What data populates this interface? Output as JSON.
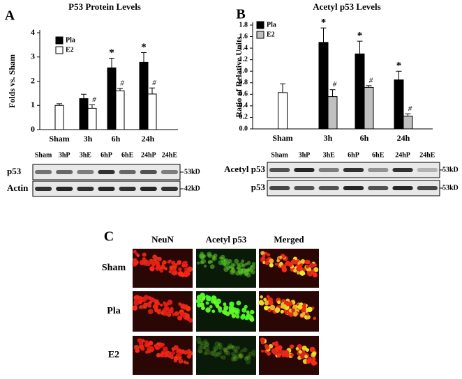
{
  "chart_data": [
    {
      "type": "bar",
      "panel": "A",
      "title": "P53 Protein Levels",
      "y_label": "Folds vs. Sham",
      "ylim": [
        0,
        4
      ],
      "yticks": [
        0,
        1,
        2,
        3,
        4
      ],
      "sham": {
        "label": "Sham",
        "value": 1,
        "error": 0.07,
        "color": "#ffffff"
      },
      "categories": [
        "3h",
        "6h",
        "24h"
      ],
      "series": [
        {
          "name": "Pla",
          "color": "#000000",
          "values": [
            1.28,
            2.55,
            2.78
          ],
          "errors": [
            0.18,
            0.4,
            0.4
          ],
          "marks": [
            null,
            "*",
            "*"
          ]
        },
        {
          "name": "E2",
          "color": "#ffffff",
          "values": [
            0.88,
            1.6,
            1.47
          ],
          "errors": [
            0.14,
            0.1,
            0.25
          ],
          "marks": [
            "#",
            "#",
            "#"
          ]
        }
      ]
    },
    {
      "type": "bar",
      "panel": "B",
      "title": "Acetyl p53 Levels",
      "y_label": "Ratio of Relative Units",
      "ylim": [
        0,
        1.8
      ],
      "yticks": [
        {
          "value": 0,
          "label": "0.0"
        },
        0.2,
        0.4,
        0.6,
        0.8,
        {
          "value": 1,
          "label": "1.0"
        },
        1.2,
        1.4,
        1.6,
        1.8
      ],
      "sham": {
        "label": "Sham",
        "value": 0.63,
        "error": 0.15,
        "color": "#ffffff"
      },
      "categories": [
        "3h",
        "6h",
        "24h"
      ],
      "series": [
        {
          "name": "Pla",
          "color": "#000000",
          "values": [
            1.5,
            1.3,
            0.85
          ],
          "errors": [
            0.25,
            0.22,
            0.15
          ],
          "marks": [
            "*",
            "*",
            "*"
          ]
        },
        {
          "name": "E2",
          "color": "#c0c0c0",
          "values": [
            0.56,
            0.72,
            0.22
          ],
          "errors": [
            0.12,
            0.03,
            0.04
          ],
          "marks": [
            "#",
            "#",
            "#"
          ]
        }
      ]
    }
  ],
  "blots": [
    {
      "lanes": [
        "Sham",
        "3hP",
        "3hE",
        "6hP",
        "6hE",
        "24hP",
        "24hE"
      ],
      "rows": [
        {
          "label": "p53",
          "size": "53kD"
        },
        {
          "label": "Actin",
          "size": "42kD"
        }
      ]
    },
    {
      "lanes": [
        "Sham",
        "3hP",
        "3hE",
        "6hP",
        "6hE",
        "24hP",
        "24hE"
      ],
      "rows": [
        {
          "label": "Acetyl p53",
          "size": "53kD"
        },
        {
          "label": "p53",
          "size": "53kD"
        }
      ]
    }
  ],
  "microscopy": {
    "panel": "C",
    "columns": [
      "NeuN",
      "Acetyl p53",
      "Merged"
    ],
    "rows": [
      "Sham",
      "Pla",
      "E2"
    ]
  }
}
